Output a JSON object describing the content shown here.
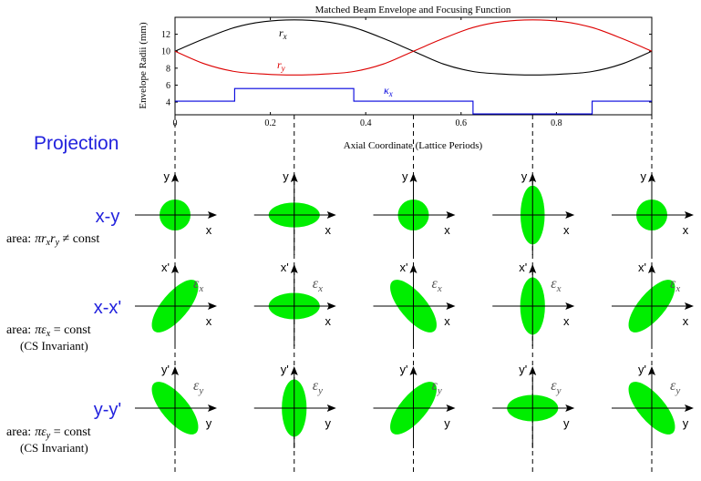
{
  "chart_data": {
    "type": "line",
    "title": "Matched Beam Envelope and Focusing Function",
    "xlabel": "Axial Coordinate (Lattice Periods)",
    "ylabel": "Envelope Radii (mm)",
    "xlim": [
      0,
      1
    ],
    "ylim": [
      2.5,
      14
    ],
    "x_ticks": [
      "0",
      "0.2",
      "0.4",
      "0.6",
      "0.8"
    ],
    "y_ticks": [
      "4",
      "6",
      "8",
      "10",
      "12"
    ],
    "series": [
      {
        "name": "r_x",
        "label_text": "r",
        "label_sub": "x",
        "color": "#000000",
        "x": [
          0,
          0.0625,
          0.125,
          0.1875,
          0.25,
          0.3125,
          0.375,
          0.4375,
          0.5,
          0.5625,
          0.625,
          0.6875,
          0.75,
          0.8125,
          0.875,
          0.9375,
          1.0
        ],
        "values": [
          10.0,
          11.5,
          12.8,
          13.5,
          13.7,
          13.5,
          12.8,
          11.5,
          10.0,
          8.5,
          7.6,
          7.3,
          7.2,
          7.3,
          7.6,
          8.5,
          10.0
        ]
      },
      {
        "name": "r_y",
        "label_text": "r",
        "label_sub": "y",
        "color": "#dd0000",
        "x": [
          0,
          0.0625,
          0.125,
          0.1875,
          0.25,
          0.3125,
          0.375,
          0.4375,
          0.5,
          0.5625,
          0.625,
          0.6875,
          0.75,
          0.8125,
          0.875,
          0.9375,
          1.0
        ],
        "values": [
          10.0,
          8.5,
          7.6,
          7.3,
          7.2,
          7.3,
          7.6,
          8.5,
          10.0,
          11.5,
          12.8,
          13.5,
          13.7,
          13.5,
          12.8,
          11.5,
          10.0
        ]
      },
      {
        "name": "kappa_x",
        "label_text": "κ",
        "label_sub": "x",
        "color": "#0000dd",
        "step": true,
        "x": [
          0,
          0.125,
          0.375,
          0.625,
          0.875,
          1.0
        ],
        "values": [
          4.1,
          5.6,
          4.1,
          2.6,
          4.1,
          4.1
        ]
      }
    ],
    "grid": false,
    "legend": "none"
  },
  "phase_space": {
    "title": "Projection",
    "rows": [
      {
        "label": "x-y",
        "note_prefix": "area:",
        "note_formula": "πr",
        "note_sub1": "x",
        "note_mid": "r",
        "note_sub2": "y",
        "note_suffix": " ≠ const",
        "invariant": "",
        "axis_v": "y",
        "axis_h": "x",
        "emittance_symbol": "",
        "emittance_sub": "",
        "ellipses": [
          {
            "rx": 1.0,
            "ry": 1.0,
            "tilt": 0
          },
          {
            "rx": 1.65,
            "ry": 0.8,
            "tilt": 0
          },
          {
            "rx": 1.0,
            "ry": 1.0,
            "tilt": 0
          },
          {
            "rx": 0.78,
            "ry": 1.9,
            "tilt": 0
          },
          {
            "rx": 1.0,
            "ry": 1.0,
            "tilt": 0
          }
        ]
      },
      {
        "label": "x-x'",
        "note_prefix": "area:",
        "note_formula": "πε",
        "note_sub1": "x",
        "note_mid": "",
        "note_sub2": "",
        "note_suffix": " = const",
        "invariant": "(CS Invariant)",
        "axis_v": "x'",
        "axis_h": "x",
        "emittance_symbol": "ε",
        "emittance_sub": "x",
        "ellipses": [
          {
            "rx": 0.85,
            "ry": 2.1,
            "tilt": 40
          },
          {
            "rx": 1.65,
            "ry": 0.85,
            "tilt": 0
          },
          {
            "rx": 0.85,
            "ry": 2.1,
            "tilt": -40
          },
          {
            "rx": 0.8,
            "ry": 1.85,
            "tilt": 0
          },
          {
            "rx": 0.85,
            "ry": 2.1,
            "tilt": 40
          }
        ]
      },
      {
        "label": "y-y'",
        "note_prefix": "area:",
        "note_formula": "πε",
        "note_sub1": "y",
        "note_mid": "",
        "note_sub2": "",
        "note_suffix": " = const",
        "invariant": "(CS Invariant)",
        "axis_v": "y'",
        "axis_h": "y",
        "emittance_symbol": "ε",
        "emittance_sub": "y",
        "ellipses": [
          {
            "rx": 0.85,
            "ry": 2.1,
            "tilt": -40
          },
          {
            "rx": 0.8,
            "ry": 1.85,
            "tilt": 0
          },
          {
            "rx": 0.85,
            "ry": 2.1,
            "tilt": 40
          },
          {
            "rx": 1.65,
            "ry": 0.85,
            "tilt": 0
          },
          {
            "rx": 0.85,
            "ry": 2.1,
            "tilt": -40
          }
        ]
      }
    ],
    "column_positions": [
      0,
      0.25,
      0.5,
      0.75,
      1.0
    ],
    "ellipse_color": "#00ee00",
    "text_blue": "#2222dd"
  }
}
